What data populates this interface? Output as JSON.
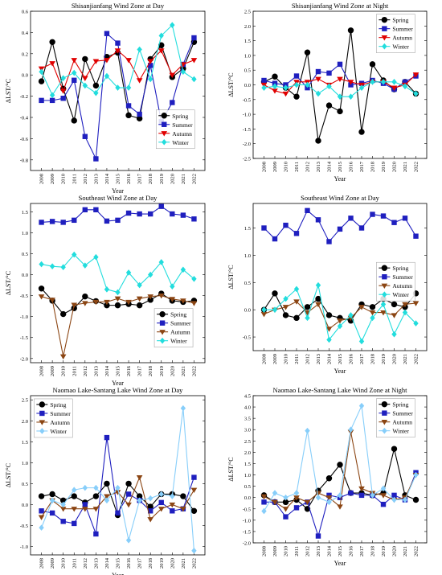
{
  "chart_data": [
    {
      "type": "line",
      "title": "Shisanjianfang Wind Zone at Day",
      "xlabel": "Year",
      "ylabel": "ΔLST/°C",
      "ylim": [
        -0.9,
        0.6
      ],
      "yticks": [
        -0.8,
        -0.6,
        -0.4,
        -0.2,
        0.0,
        0.2,
        0.4,
        0.6
      ],
      "ytick_labels": [
        "-0.8",
        "-0.6",
        "-0.4",
        "-0.2",
        "0.0",
        "0.2",
        "0.4",
        "0.6"
      ],
      "legend": "bottom-right",
      "x": [
        2008,
        2009,
        2010,
        2011,
        2012,
        2013,
        2014,
        2015,
        2016,
        2017,
        2018,
        2019,
        2020,
        2021,
        2022
      ],
      "series": [
        {
          "name": "Spring",
          "color": "#000000",
          "marker": "circle",
          "values": [
            -0.06,
            0.31,
            -0.13,
            -0.43,
            0.15,
            -0.1,
            0.17,
            0.21,
            -0.38,
            -0.41,
            0.15,
            0.28,
            -0.02,
            0.06,
            0.31
          ]
        },
        {
          "name": "Summer",
          "color": "#1f1fbf",
          "marker": "square",
          "values": [
            -0.24,
            -0.24,
            -0.22,
            -0.05,
            -0.58,
            -0.79,
            0.39,
            0.3,
            -0.29,
            -0.37,
            0.09,
            -0.44,
            -0.26,
            0.1,
            0.35
          ]
        },
        {
          "name": "Autumn",
          "color": "#e00000",
          "marker": "triangle-down",
          "values": [
            0.06,
            0.11,
            -0.15,
            0.14,
            -0.03,
            0.13,
            0.14,
            0.23,
            0.14,
            -0.05,
            0.13,
            0.23,
            0.0,
            0.1,
            0.14
          ]
        },
        {
          "name": "Winter",
          "color": "#22dddd",
          "marker": "diamond",
          "values": [
            0.03,
            -0.19,
            -0.03,
            0.02,
            -0.1,
            -0.17,
            -0.01,
            -0.12,
            -0.12,
            0.24,
            -0.04,
            0.37,
            0.47,
            0.03,
            -0.04
          ]
        }
      ]
    },
    {
      "type": "line",
      "title": "Shisanjianfang Wind Zone at Night",
      "xlabel": "Year",
      "ylabel": "ΔLST/°C",
      "ylim": [
        -2.5,
        2.5
      ],
      "yticks": [
        -2.5,
        -2.0,
        -1.5,
        -1.0,
        -0.5,
        0.0,
        0.5,
        1.0,
        1.5,
        2.0,
        2.5
      ],
      "ytick_labels": [
        "-2.5",
        "-2.0",
        "-1.5",
        "-1.0",
        "-0.5",
        "0.0",
        "0.5",
        "1.0",
        "1.5",
        "2.0",
        "2.5"
      ],
      "legend": "top-right",
      "x": [
        2008,
        2009,
        2010,
        2011,
        2012,
        2013,
        2014,
        2015,
        2016,
        2017,
        2018,
        2019,
        2020,
        2021,
        2022
      ],
      "series": [
        {
          "name": "Spring",
          "color": "#000000",
          "marker": "circle",
          "values": [
            0.1,
            0.28,
            -0.1,
            -0.4,
            1.1,
            -1.9,
            -0.7,
            -0.9,
            1.85,
            -1.6,
            0.7,
            0.15,
            -0.15,
            0.1,
            -0.3
          ]
        },
        {
          "name": "Summer",
          "color": "#1f1fbf",
          "marker": "square",
          "values": [
            0.15,
            0.05,
            0.0,
            0.3,
            -0.1,
            0.45,
            0.4,
            0.7,
            0.0,
            0.05,
            0.15,
            0.05,
            -0.15,
            0.1,
            0.3
          ]
        },
        {
          "name": "Autumn",
          "color": "#e00000",
          "marker": "triangle-down",
          "values": [
            0.0,
            -0.2,
            -0.3,
            0.1,
            0.1,
            0.2,
            0.0,
            0.2,
            0.1,
            0.0,
            0.1,
            0.1,
            -0.1,
            0.0,
            0.35
          ]
        },
        {
          "name": "Winter",
          "color": "#22dddd",
          "marker": "diamond",
          "values": [
            -0.1,
            -0.05,
            -0.1,
            0.0,
            0.0,
            -0.3,
            -0.05,
            -0.4,
            -0.4,
            -0.1,
            0.1,
            0.1,
            0.1,
            -0.05,
            -0.3
          ]
        }
      ]
    },
    {
      "type": "line",
      "title": "Southeast Wind Zone at Day",
      "xlabel": "Year",
      "ylabel": "ΔLST/°C",
      "ylim": [
        -2.1,
        1.7
      ],
      "yticks": [
        -2.0,
        -1.5,
        -1.0,
        -0.5,
        0.0,
        0.5,
        1.0,
        1.5
      ],
      "ytick_labels": [
        "-2.0",
        "-1.5",
        "-1.0",
        "-0.5",
        "0.0",
        "0.5",
        "1.0",
        "1.5"
      ],
      "legend": "bottom-right",
      "x": [
        2008,
        2009,
        2010,
        2011,
        2012,
        2013,
        2014,
        2015,
        2016,
        2017,
        2018,
        2019,
        2020,
        2021,
        2022
      ],
      "series": [
        {
          "name": "Spring",
          "color": "#000000",
          "marker": "circle",
          "values": [
            -0.33,
            -0.62,
            -0.94,
            -0.8,
            -0.52,
            -0.63,
            -0.73,
            -0.73,
            -0.7,
            -0.73,
            -0.6,
            -0.45,
            -0.62,
            -0.65,
            -0.62
          ]
        },
        {
          "name": "Summer",
          "color": "#1f1fbf",
          "marker": "square",
          "values": [
            1.25,
            1.27,
            1.25,
            1.3,
            1.55,
            1.55,
            1.28,
            1.3,
            1.47,
            1.45,
            1.45,
            1.63,
            1.45,
            1.42,
            1.33
          ]
        },
        {
          "name": "Autumn",
          "color": "#8b4513",
          "marker": "triangle-down",
          "values": [
            -0.52,
            -0.6,
            -1.95,
            -0.72,
            -0.68,
            -0.65,
            -0.65,
            -0.57,
            -0.65,
            -0.57,
            -0.52,
            -0.5,
            -0.58,
            -0.62,
            -0.68
          ]
        },
        {
          "name": "Winter",
          "color": "#22dddd",
          "marker": "diamond",
          "values": [
            0.25,
            0.2,
            0.18,
            0.48,
            0.22,
            0.42,
            -0.35,
            -0.42,
            0.05,
            -0.25,
            0.0,
            0.3,
            -0.28,
            0.12,
            -0.1
          ]
        }
      ]
    },
    {
      "type": "line",
      "title": "Southeast Wind Zone at Day",
      "xlabel": "Year",
      "ylabel": "ΔLST/°C",
      "ylim": [
        -0.75,
        1.95
      ],
      "yticks": [
        -0.5,
        0.0,
        0.5,
        1.0,
        1.5
      ],
      "ytick_labels": [
        "-0.5",
        "0.0",
        "0.5",
        "1.0",
        "1.5"
      ],
      "legend": "right",
      "x": [
        2008,
        2009,
        2010,
        2011,
        2012,
        2013,
        2014,
        2015,
        2016,
        2017,
        2018,
        2019,
        2020,
        2021,
        2022
      ],
      "series": [
        {
          "name": "Spring",
          "color": "#000000",
          "marker": "circle",
          "values": [
            0.0,
            0.3,
            -0.1,
            -0.15,
            0.05,
            0.2,
            -0.1,
            -0.15,
            -0.2,
            0.1,
            0.05,
            0.2,
            0.1,
            0.05,
            0.3
          ]
        },
        {
          "name": "Summer",
          "color": "#1f1fbf",
          "marker": "square",
          "values": [
            1.5,
            1.3,
            1.55,
            1.4,
            1.82,
            1.65,
            1.25,
            1.48,
            1.68,
            1.5,
            1.75,
            1.72,
            1.6,
            1.68,
            1.35
          ]
        },
        {
          "name": "Autumn",
          "color": "#8b4513",
          "marker": "triangle-down",
          "values": [
            -0.08,
            0.0,
            0.05,
            0.15,
            -0.05,
            0.1,
            -0.35,
            -0.2,
            -0.15,
            0.05,
            -0.05,
            -0.05,
            -0.1,
            0.1,
            0.12
          ]
        },
        {
          "name": "Winter",
          "color": "#22dddd",
          "marker": "diamond",
          "values": [
            0.0,
            0.0,
            0.2,
            0.38,
            -0.15,
            0.45,
            -0.55,
            -0.3,
            -0.1,
            -0.58,
            -0.15,
            0.1,
            -0.45,
            -0.05,
            -0.25
          ]
        }
      ]
    },
    {
      "type": "line",
      "title": "Naomao Lake-Santang Lake Wind Zone at Day",
      "xlabel": "Year",
      "ylabel": "ΔLST/°C",
      "ylim": [
        -1.2,
        2.6
      ],
      "yticks": [
        -1.0,
        -0.5,
        0.0,
        0.5,
        1.0,
        1.5,
        2.0,
        2.5
      ],
      "ytick_labels": [
        "-1.0",
        "-0.5",
        "0.0",
        "0.5",
        "1.0",
        "1.5",
        "2.0",
        "2.5"
      ],
      "legend": "top-left",
      "x": [
        2008,
        2009,
        2010,
        2011,
        2012,
        2013,
        2014,
        2015,
        2016,
        2017,
        2018,
        2019,
        2020,
        2021,
        2022
      ],
      "series": [
        {
          "name": "Spring",
          "color": "#000000",
          "marker": "circle",
          "values": [
            0.2,
            0.25,
            0.1,
            0.2,
            0.05,
            0.2,
            0.5,
            -0.25,
            0.5,
            0.2,
            -0.05,
            0.25,
            0.25,
            0.2,
            -0.15
          ]
        },
        {
          "name": "Summer",
          "color": "#1f1fbf",
          "marker": "square",
          "values": [
            -0.15,
            -0.2,
            -0.4,
            -0.45,
            0.0,
            -0.7,
            1.6,
            -0.2,
            0.25,
            0.1,
            -0.15,
            0.05,
            -0.15,
            -0.1,
            0.65
          ]
        },
        {
          "name": "Autumn",
          "color": "#8b4513",
          "marker": "triangle-down",
          "values": [
            -0.3,
            0.1,
            -0.1,
            -0.1,
            -0.1,
            -0.1,
            0.2,
            0.3,
            0.0,
            0.65,
            -0.35,
            -0.1,
            0.0,
            -0.1,
            0.35
          ]
        },
        {
          "name": "Winter",
          "color": "#87cefa",
          "marker": "diamond",
          "values": [
            -0.55,
            0.1,
            0.0,
            0.35,
            0.4,
            0.4,
            0.1,
            0.4,
            -0.85,
            0.1,
            0.15,
            0.25,
            0.2,
            2.3,
            -1.1
          ]
        }
      ]
    },
    {
      "type": "line",
      "title": "Naomao Lake-Santang Lake Wind Zone at Night",
      "xlabel": "Year",
      "ylabel": "ΔLST/°C",
      "ylim": [
        -2.0,
        4.5
      ],
      "yticks": [
        -2.0,
        -1.5,
        -1.0,
        -0.5,
        0.0,
        0.5,
        1.0,
        1.5,
        2.0,
        2.5,
        3.0,
        3.5,
        4.0,
        4.5
      ],
      "ytick_labels": [
        "-2.0",
        "-1.5",
        "-1.0",
        "-0.5",
        "0.0",
        "0.5",
        "1.0",
        "1.5",
        "2.0",
        "2.5",
        "3.0",
        "3.5",
        "4.0",
        "4.5"
      ],
      "legend": "top-right",
      "x": [
        2008,
        2009,
        2010,
        2011,
        2012,
        2013,
        2014,
        2015,
        2016,
        2017,
        2018,
        2019,
        2020,
        2021,
        2022
      ],
      "series": [
        {
          "name": "Spring",
          "color": "#000000",
          "marker": "circle",
          "values": [
            0.1,
            -0.2,
            -0.2,
            -0.1,
            -0.5,
            0.3,
            0.85,
            1.45,
            0.2,
            0.2,
            0.1,
            0.2,
            2.15,
            0.1,
            -0.1
          ]
        },
        {
          "name": "Summer",
          "color": "#1f1fbf",
          "marker": "square",
          "values": [
            -0.2,
            -0.2,
            -0.85,
            -0.45,
            -0.2,
            -1.7,
            0.1,
            0.0,
            0.2,
            0.1,
            0.1,
            -0.3,
            0.1,
            -0.1,
            1.1
          ]
        },
        {
          "name": "Autumn",
          "color": "#8b4513",
          "marker": "triangle-down",
          "values": [
            0.05,
            -0.2,
            -0.5,
            0.0,
            -0.2,
            0.2,
            0.0,
            -0.4,
            2.9,
            0.4,
            0.2,
            0.1,
            -0.1,
            0.0,
            1.0
          ]
        },
        {
          "name": "Winter",
          "color": "#87cefa",
          "marker": "diamond",
          "values": [
            -0.6,
            0.2,
            0.0,
            0.2,
            2.95,
            0.0,
            -0.2,
            0.1,
            3.0,
            4.05,
            0.1,
            0.4,
            -0.1,
            -0.1,
            1.0
          ]
        }
      ]
    }
  ]
}
